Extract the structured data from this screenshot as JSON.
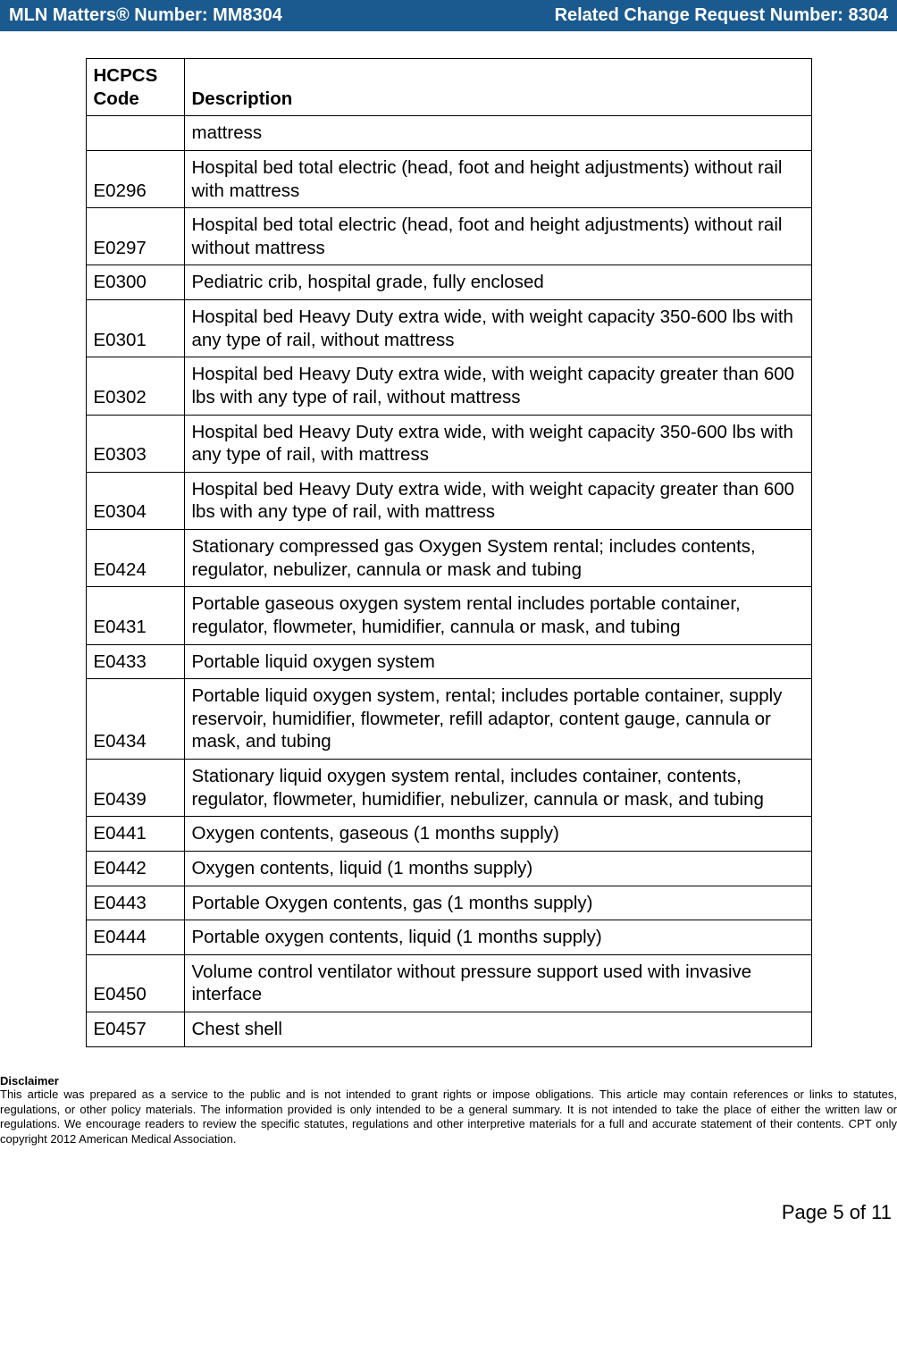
{
  "header": {
    "left": "MLN Matters® Number: MM8304",
    "right": "Related Change Request Number: 8304"
  },
  "table": {
    "columns": [
      "HCPCS Code",
      "Description"
    ],
    "rows": [
      [
        "",
        "mattress"
      ],
      [
        "E0296",
        "Hospital bed total electric (head, foot and height adjustments) without rail with mattress"
      ],
      [
        "E0297",
        "Hospital bed total electric (head, foot and height adjustments) without rail without mattress"
      ],
      [
        "E0300",
        "Pediatric crib, hospital grade, fully enclosed"
      ],
      [
        "E0301",
        "Hospital bed Heavy Duty extra wide, with weight capacity 350-600 lbs with any type of rail, without mattress"
      ],
      [
        "E0302",
        "Hospital bed Heavy Duty extra wide, with weight capacity  greater than 600 lbs with any type of rail, without mattress"
      ],
      [
        "E0303",
        "Hospital bed Heavy Duty extra wide, with weight capacity 350-600 lbs with any type of rail, with mattress"
      ],
      [
        "E0304",
        "Hospital bed Heavy Duty extra wide, with weight capacity  greater than 600 lbs with any type of rail, with mattress"
      ],
      [
        "E0424",
        "Stationary compressed gas Oxygen System rental; includes contents, regulator, nebulizer, cannula or mask and tubing"
      ],
      [
        "E0431",
        "Portable gaseous oxygen system rental includes portable container, regulator, flowmeter, humidifier, cannula or mask, and tubing"
      ],
      [
        "E0433",
        "Portable liquid oxygen system"
      ],
      [
        "E0434",
        "Portable liquid oxygen system, rental; includes portable container, supply reservoir, humidifier, flowmeter, refill adaptor, content gauge, cannula or mask, and tubing"
      ],
      [
        "E0439",
        "Stationary liquid oxygen system rental, includes container, contents, regulator, flowmeter, humidifier, nebulizer, cannula or mask, and tubing"
      ],
      [
        "E0441",
        "Oxygen contents, gaseous (1 months supply)"
      ],
      [
        "E0442",
        "Oxygen contents, liquid (1 months supply)"
      ],
      [
        "E0443",
        "Portable Oxygen contents, gas (1 months supply)"
      ],
      [
        "E0444",
        "Portable oxygen contents, liquid (1 months supply)"
      ],
      [
        "E0450",
        "Volume control ventilator without pressure support used with invasive interface"
      ],
      [
        "E0457",
        "Chest shell"
      ]
    ]
  },
  "disclaimer": {
    "title": "Disclaimer",
    "text": "This article was prepared as a service to the public and is not intended to grant rights or impose obligations. This article may contain references or links to statutes, regulations, or other policy materials. The information provided is only intended to be a general summary. It is not intended to take the place of either the written law or regulations. We encourage readers to review the specific statutes, regulations and other interpretive materials for a full and accurate statement of their contents. CPT only copyright 2012 American Medical Association."
  },
  "footer": {
    "page": "Page 5 of 11"
  }
}
